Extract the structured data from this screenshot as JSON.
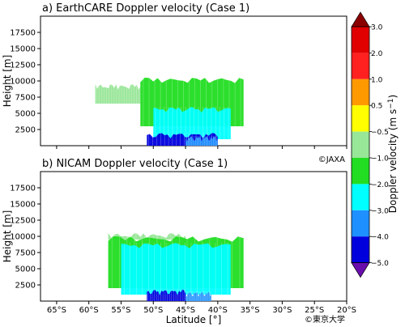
{
  "chart_data": [
    {
      "type": "heatmap",
      "title": "a) EarthCARE Doppler velocity (Case 1)",
      "ylabel": "Height [m]",
      "yticks": [
        2500,
        5000,
        7500,
        10000,
        12500,
        15000,
        17500
      ],
      "ylim": [
        0,
        20000
      ],
      "xlim": [
        -67.5,
        -20
      ],
      "credit": "©JAXA",
      "regions": [
        {
          "lat": [
            -59,
            -52
          ],
          "h": [
            6500,
            9500
          ],
          "velocity": -0.5
        },
        {
          "lat": [
            -52,
            -36
          ],
          "h": [
            3000,
            10500
          ],
          "velocity": -1.0
        },
        {
          "lat": [
            -50,
            -38
          ],
          "h": [
            1000,
            6000
          ],
          "velocity": -2.0
        },
        {
          "lat": [
            -51,
            -40
          ],
          "h": [
            0,
            2000
          ],
          "velocity": -4.0
        },
        {
          "lat": [
            -45,
            -40
          ],
          "h": [
            0,
            1500
          ],
          "velocity": -3.0
        }
      ]
    },
    {
      "type": "heatmap",
      "title": "b) NICAM Doppler velocity (Case 1)",
      "xlabel": "Latitude [°]",
      "ylabel": "Height [m]",
      "xticks": [
        "65°S",
        "60°S",
        "55°S",
        "50°S",
        "45°S",
        "40°S",
        "35°S",
        "30°S",
        "25°S",
        "20°S"
      ],
      "xtick_values": [
        -65,
        -60,
        -55,
        -50,
        -45,
        -40,
        -35,
        -30,
        -25,
        -20
      ],
      "yticks": [
        2500,
        5000,
        7500,
        10000,
        12500,
        15000,
        17500
      ],
      "ylim": [
        0,
        20000
      ],
      "xlim": [
        -67.5,
        -20
      ],
      "credit": "©東京大学",
      "regions": [
        {
          "lat": [
            -57,
            -45
          ],
          "h": [
            9500,
            10500
          ],
          "velocity": -0.5
        },
        {
          "lat": [
            -57,
            -36
          ],
          "h": [
            2000,
            10000
          ],
          "velocity": -1.0
        },
        {
          "lat": [
            -55,
            -38
          ],
          "h": [
            1000,
            9000
          ],
          "velocity": -2.0
        },
        {
          "lat": [
            -51,
            -45
          ],
          "h": [
            0,
            1800
          ],
          "velocity": -4.0
        },
        {
          "lat": [
            -45,
            -41
          ],
          "h": [
            0,
            1500
          ],
          "velocity": -3.0
        }
      ]
    }
  ],
  "colorbar": {
    "label": "Doppler velocity (m s",
    "label_sup": "−1",
    "label_end": ")",
    "tick_labels": [
      "3.0",
      "2.0",
      "1.0",
      "0.5",
      "−0.5",
      "−1.0",
      "−2.0",
      "−3.0",
      "−4.0",
      "−5.0"
    ],
    "colors": [
      "#8b0000",
      "#e00000",
      "#ff2020",
      "#ff9900",
      "#ffff00",
      "#98e698",
      "#22dd22",
      "#00ffff",
      "#1e90ff",
      "#0000dd",
      "#6a0dad"
    ]
  }
}
